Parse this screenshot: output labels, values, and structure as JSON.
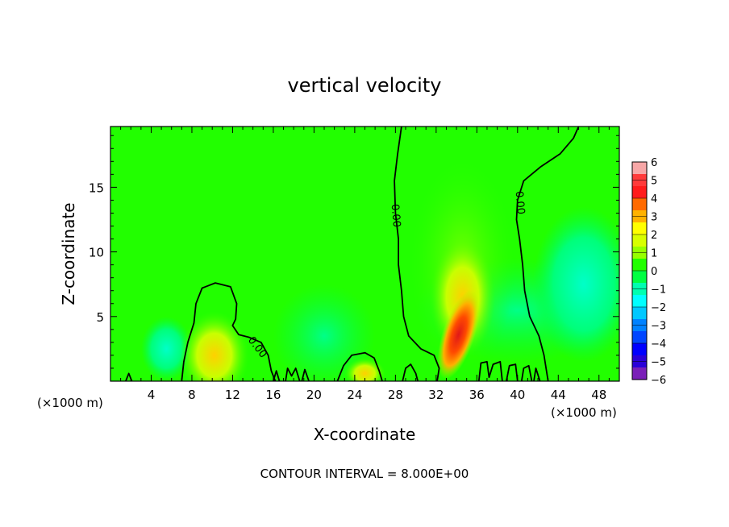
{
  "chart_data": {
    "type": "heatmap",
    "title": "vertical velocity",
    "xlabel": "X-coordinate",
    "ylabel": "Z-coordinate",
    "x_unit_left": "(×1000 m)",
    "x_unit_right": "(×1000 m)",
    "xlim": [
      0,
      50
    ],
    "ylim": [
      0,
      19.7
    ],
    "x_ticks": [
      4,
      8,
      12,
      16,
      20,
      24,
      28,
      32,
      36,
      40,
      44,
      48
    ],
    "y_ticks": [
      5,
      10,
      15
    ],
    "x_tick_labels": [
      "4",
      "8",
      "12",
      "16",
      "20",
      "24",
      "28",
      "32",
      "36",
      "40",
      "44",
      "48"
    ],
    "y_tick_labels": [
      "5",
      "10",
      "15"
    ],
    "colorbar": {
      "min": -6,
      "max": 6,
      "ticks": [
        "6",
        "5",
        "4",
        "3",
        "2",
        "1",
        "0",
        "−1",
        "−2",
        "−3",
        "−4",
        "−5",
        "−6"
      ],
      "colors": [
        "#f7a7a7",
        "#ff3b3b",
        "#ff1c1c",
        "#ff6a00",
        "#ffb200",
        "#ffff00",
        "#d8ff00",
        "#96ff00",
        "#22ff00",
        "#00ff42",
        "#00ffb0",
        "#00ffff",
        "#00c8ff",
        "#0082ff",
        "#0046ff",
        "#0000ff",
        "#2a00d8",
        "#7a1fb8"
      ],
      "placement": "right"
    },
    "contours": [
      {
        "level": 0,
        "label": "0.00"
      },
      {
        "level": 0,
        "label": "0.00"
      },
      {
        "level": 0,
        "label": "0.00"
      }
    ],
    "blobs": [
      {
        "x": 34.7,
        "z": 4.5,
        "peak": 5.5
      },
      {
        "x": 34.6,
        "z": 9.0,
        "peak": 1.5
      },
      {
        "x": 10.0,
        "z": 1.5,
        "peak": 1.2
      },
      {
        "x": 25.0,
        "z": 0.3,
        "peak": 1.0
      },
      {
        "x": 46.5,
        "z": 7.0,
        "peak": -1.4
      },
      {
        "x": 5.5,
        "z": 2.5,
        "peak": -0.8
      },
      {
        "x": 21.0,
        "z": 3.0,
        "peak": -0.5
      }
    ],
    "footer": "CONTOUR INTERVAL = 8.000E+00"
  }
}
